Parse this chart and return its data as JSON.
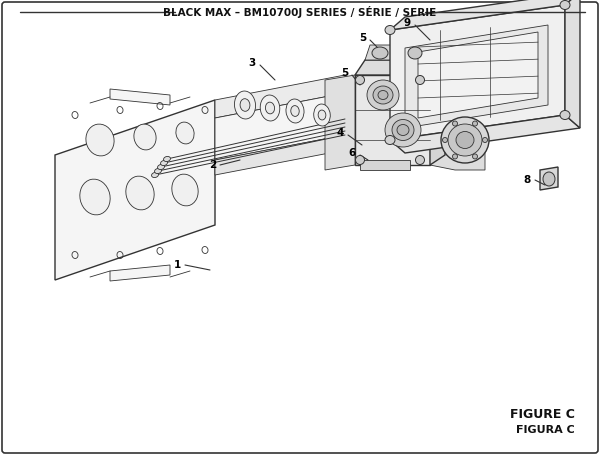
{
  "title": "BLACK MAX – BM10700J SERIES / SÉRIE / SERIE",
  "figure_label": "FIGURE C",
  "figura_label": "FIGURA C",
  "bg_color": "#ffffff",
  "line_color": "#333333",
  "title_fontsize": 7.5,
  "fig_label_fontsize": 9
}
